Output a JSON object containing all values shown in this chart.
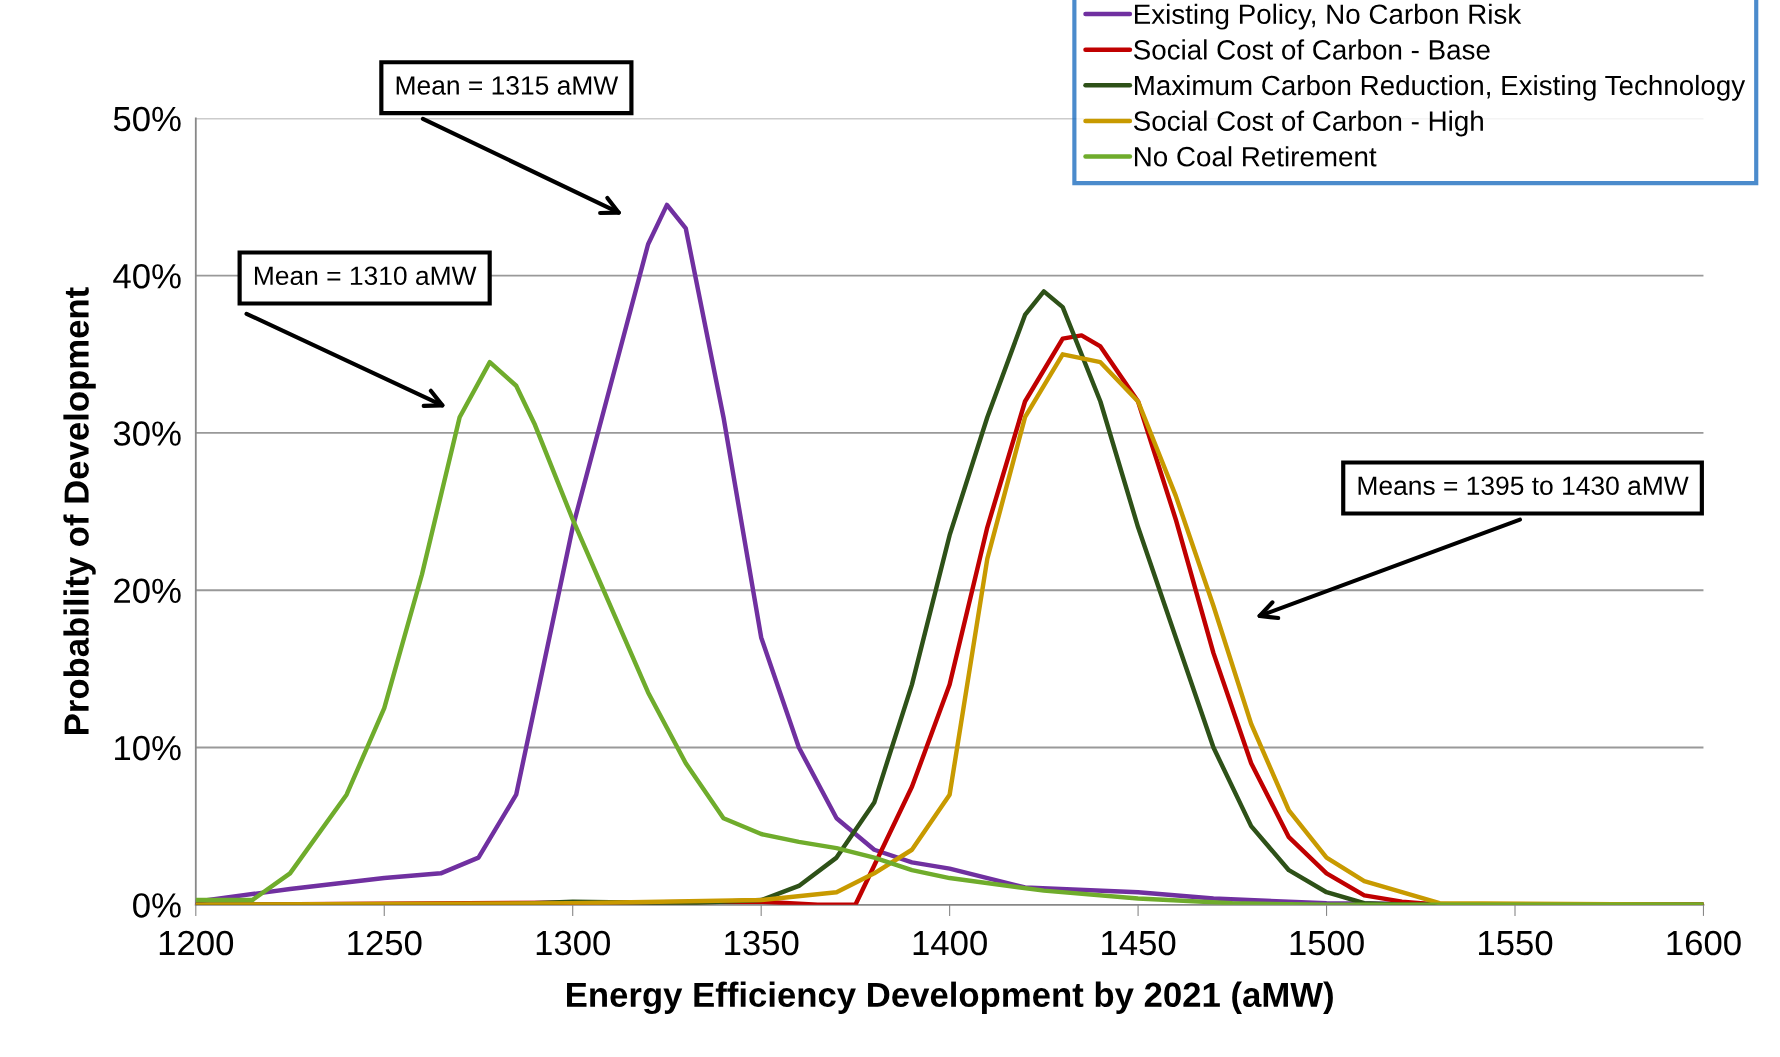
{
  "chart_data": {
    "type": "line",
    "xlabel": "Energy Efficiency Development by 2021 (aMW)",
    "ylabel": "Probability of Development",
    "xlim": [
      1200,
      1600
    ],
    "xticks": [
      1200,
      1250,
      1300,
      1350,
      1400,
      1450,
      1500,
      1550,
      1600
    ],
    "ylim": [
      0,
      50
    ],
    "yticks": [
      {
        "value": 0,
        "label": "0%"
      },
      {
        "value": 10,
        "label": "10%"
      },
      {
        "value": 20,
        "label": "20%"
      },
      {
        "value": 30,
        "label": "30%"
      },
      {
        "value": 40,
        "label": "40%"
      },
      {
        "value": 50,
        "label": "50%"
      }
    ],
    "grid": "y",
    "legend": "top right",
    "marker": "none",
    "line_style": "solid",
    "series": [
      {
        "name": "Existing Policy, No Carbon Risk",
        "color": "#7030a0",
        "x": [
          1200,
          1225,
          1250,
          1265,
          1275,
          1285,
          1300,
          1310,
          1320,
          1325,
          1330,
          1340,
          1350,
          1360,
          1370,
          1380,
          1390,
          1400,
          1420,
          1450,
          1470,
          1500,
          1550,
          1600
        ],
        "values": [
          0.2,
          1.0,
          1.7,
          2.0,
          3.0,
          7.0,
          24.0,
          33.0,
          42.0,
          44.5,
          43.0,
          31.0,
          17.0,
          10.0,
          5.5,
          3.5,
          2.7,
          2.3,
          1.1,
          0.8,
          0.4,
          0.1,
          0,
          0
        ]
      },
      {
        "name": "Social Cost of Carbon - Base",
        "color": "#c00000",
        "x": [
          1200,
          1350,
          1365,
          1375,
          1380,
          1390,
          1400,
          1410,
          1420,
          1430,
          1435,
          1440,
          1450,
          1460,
          1470,
          1480,
          1490,
          1500,
          1510,
          1520,
          1530,
          1600
        ],
        "values": [
          0,
          0.2,
          0,
          0,
          2.5,
          7.5,
          14.0,
          24.0,
          32.0,
          36.0,
          36.2,
          35.5,
          32.0,
          24.5,
          16.0,
          9.0,
          4.3,
          2.0,
          0.6,
          0.2,
          0,
          0
        ]
      },
      {
        "name": "Maximum Carbon Reduction, Existing Technology",
        "color": "#2e5118",
        "x": [
          1200,
          1280,
          1300,
          1330,
          1350,
          1360,
          1370,
          1380,
          1390,
          1400,
          1410,
          1420,
          1425,
          1430,
          1440,
          1450,
          1460,
          1470,
          1480,
          1490,
          1500,
          1510,
          1520,
          1600
        ],
        "values": [
          0,
          0,
          0.2,
          0.1,
          0.3,
          1.2,
          3.0,
          6.5,
          14.0,
          23.5,
          31.0,
          37.5,
          39.0,
          38.0,
          32.0,
          24.0,
          17.0,
          10.0,
          5.0,
          2.2,
          0.8,
          0.1,
          0,
          0
        ]
      },
      {
        "name": "Social Cost of Carbon - High",
        "color": "#c89a00",
        "x": [
          1200,
          1300,
          1350,
          1370,
          1380,
          1390,
          1400,
          1410,
          1420,
          1430,
          1440,
          1450,
          1460,
          1470,
          1480,
          1490,
          1500,
          1510,
          1520,
          1530,
          1600
        ],
        "values": [
          0,
          0.1,
          0.3,
          0.8,
          2.0,
          3.5,
          7.0,
          22.0,
          31.0,
          35.0,
          34.5,
          32.0,
          26.0,
          19.0,
          11.5,
          6.0,
          3.0,
          1.5,
          0.8,
          0.1,
          0
        ]
      },
      {
        "name": "No Coal Retirement",
        "color": "#6fac2c",
        "x": [
          1200,
          1215,
          1225,
          1240,
          1250,
          1260,
          1270,
          1278,
          1285,
          1290,
          1300,
          1310,
          1320,
          1330,
          1340,
          1350,
          1360,
          1370,
          1380,
          1390,
          1400,
          1425,
          1450,
          1475,
          1500,
          1600
        ],
        "values": [
          0.3,
          0.3,
          2.0,
          7.0,
          12.5,
          21.0,
          31.0,
          34.5,
          33.0,
          30.5,
          24.5,
          19.0,
          13.5,
          9.0,
          5.5,
          4.5,
          4.0,
          3.6,
          3.0,
          2.2,
          1.7,
          0.9,
          0.4,
          0.1,
          0,
          0
        ]
      }
    ],
    "annotations": [
      "Mean = 1315 aMW",
      "Mean = 1310 aMW",
      "Means = 1395 to 1430 aMW"
    ]
  }
}
